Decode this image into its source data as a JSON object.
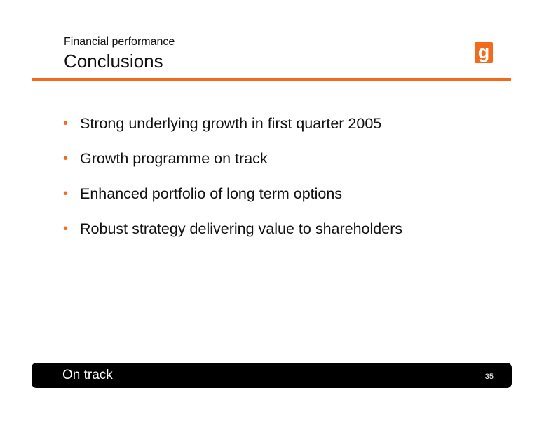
{
  "header": {
    "subtitle": "Financial performance",
    "title": "Conclusions"
  },
  "logo": {
    "icon": "brand-g-logo",
    "letter": "g"
  },
  "bullets": [
    "Strong underlying growth in first quarter 2005",
    "Growth programme on track",
    "Enhanced portfolio of long term options",
    "Robust strategy delivering value to shareholders"
  ],
  "bullet_glyph": "•",
  "footer": {
    "tag": "On track",
    "page_number": "35"
  },
  "colors": {
    "accent": "#f26a1b",
    "footer_bg": "#000000",
    "text": "#111111"
  }
}
